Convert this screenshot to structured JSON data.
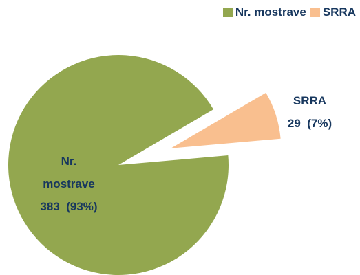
{
  "chart_data": {
    "type": "pie",
    "categories": [
      "Nr. mostrave",
      "SRRA"
    ],
    "values": [
      383,
      29
    ],
    "value_labels": [
      "383  (93%)",
      "29  (7%)"
    ],
    "colors": [
      "#93a74f",
      "#f9bf8f"
    ],
    "legend": "top-right"
  }
}
